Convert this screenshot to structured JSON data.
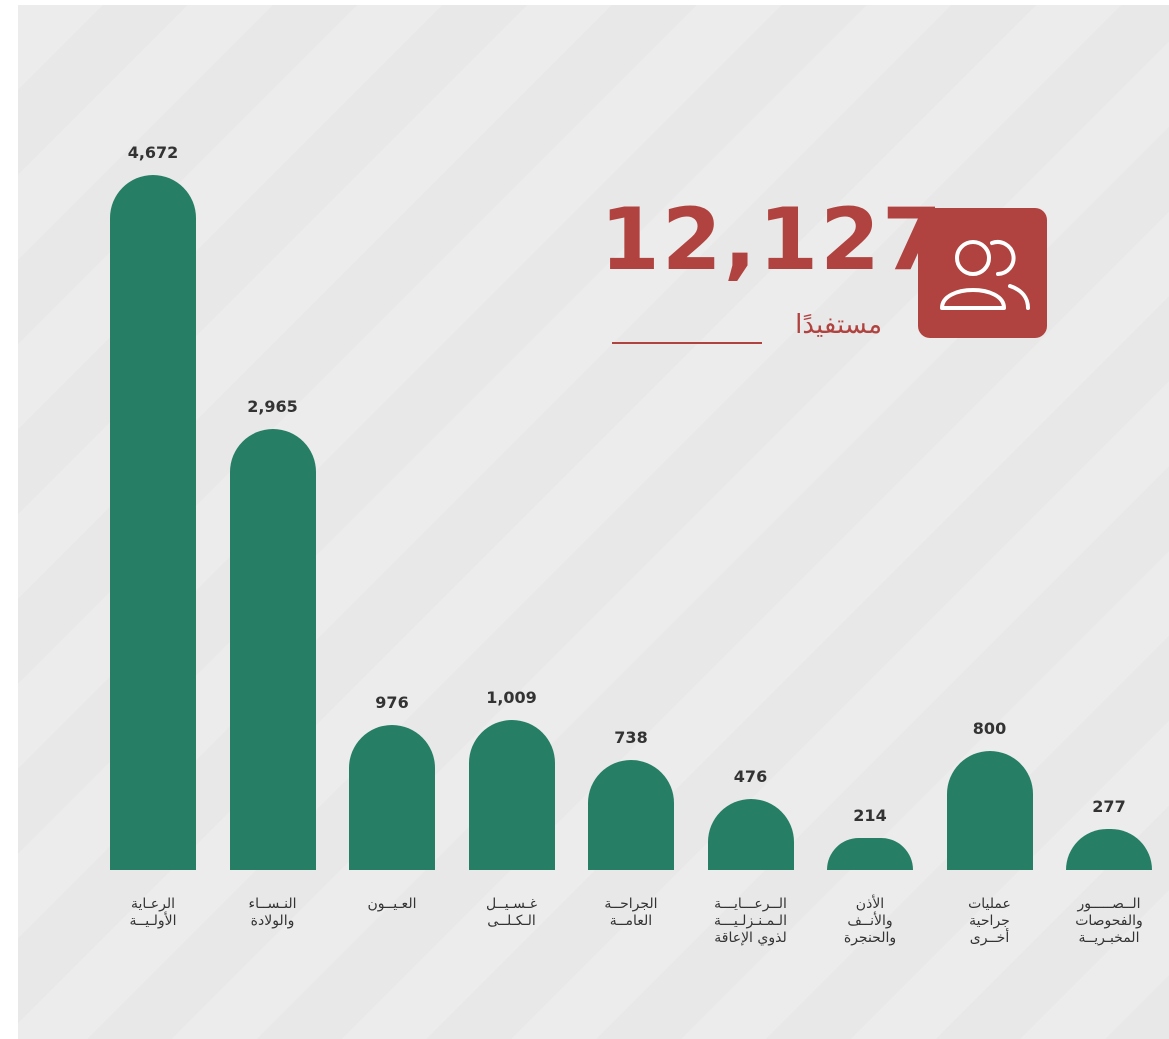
{
  "chart_data": {
    "type": "bar",
    "categories": [
      "الرعـاية\nالأولـيــة",
      "النـســاء\nوالولادة",
      "العـيــون",
      "غـسـيــل\nالـكـلــى",
      "الجراحــة\nالعامــة",
      "الــرعـــايـــة\nالـمـنـزلـيـــة\nلذوي الإعاقة",
      "الأذن\nوالأنــف\nوالحنجرة",
      "عمليات\nجراحية\nأخــرى",
      "الــصـــــور\nوالفحوصات\nالمخبـريــة"
    ],
    "values": [
      4672,
      2965,
      976,
      1009,
      738,
      476,
      214,
      800,
      277
    ],
    "value_labels": [
      "4,672",
      "2,965",
      "976",
      "1,009",
      "738",
      "476",
      "214",
      "800",
      "277"
    ],
    "color": "#267f65"
  },
  "summary": {
    "value": "12,127",
    "caption": "مستفيدًا"
  }
}
